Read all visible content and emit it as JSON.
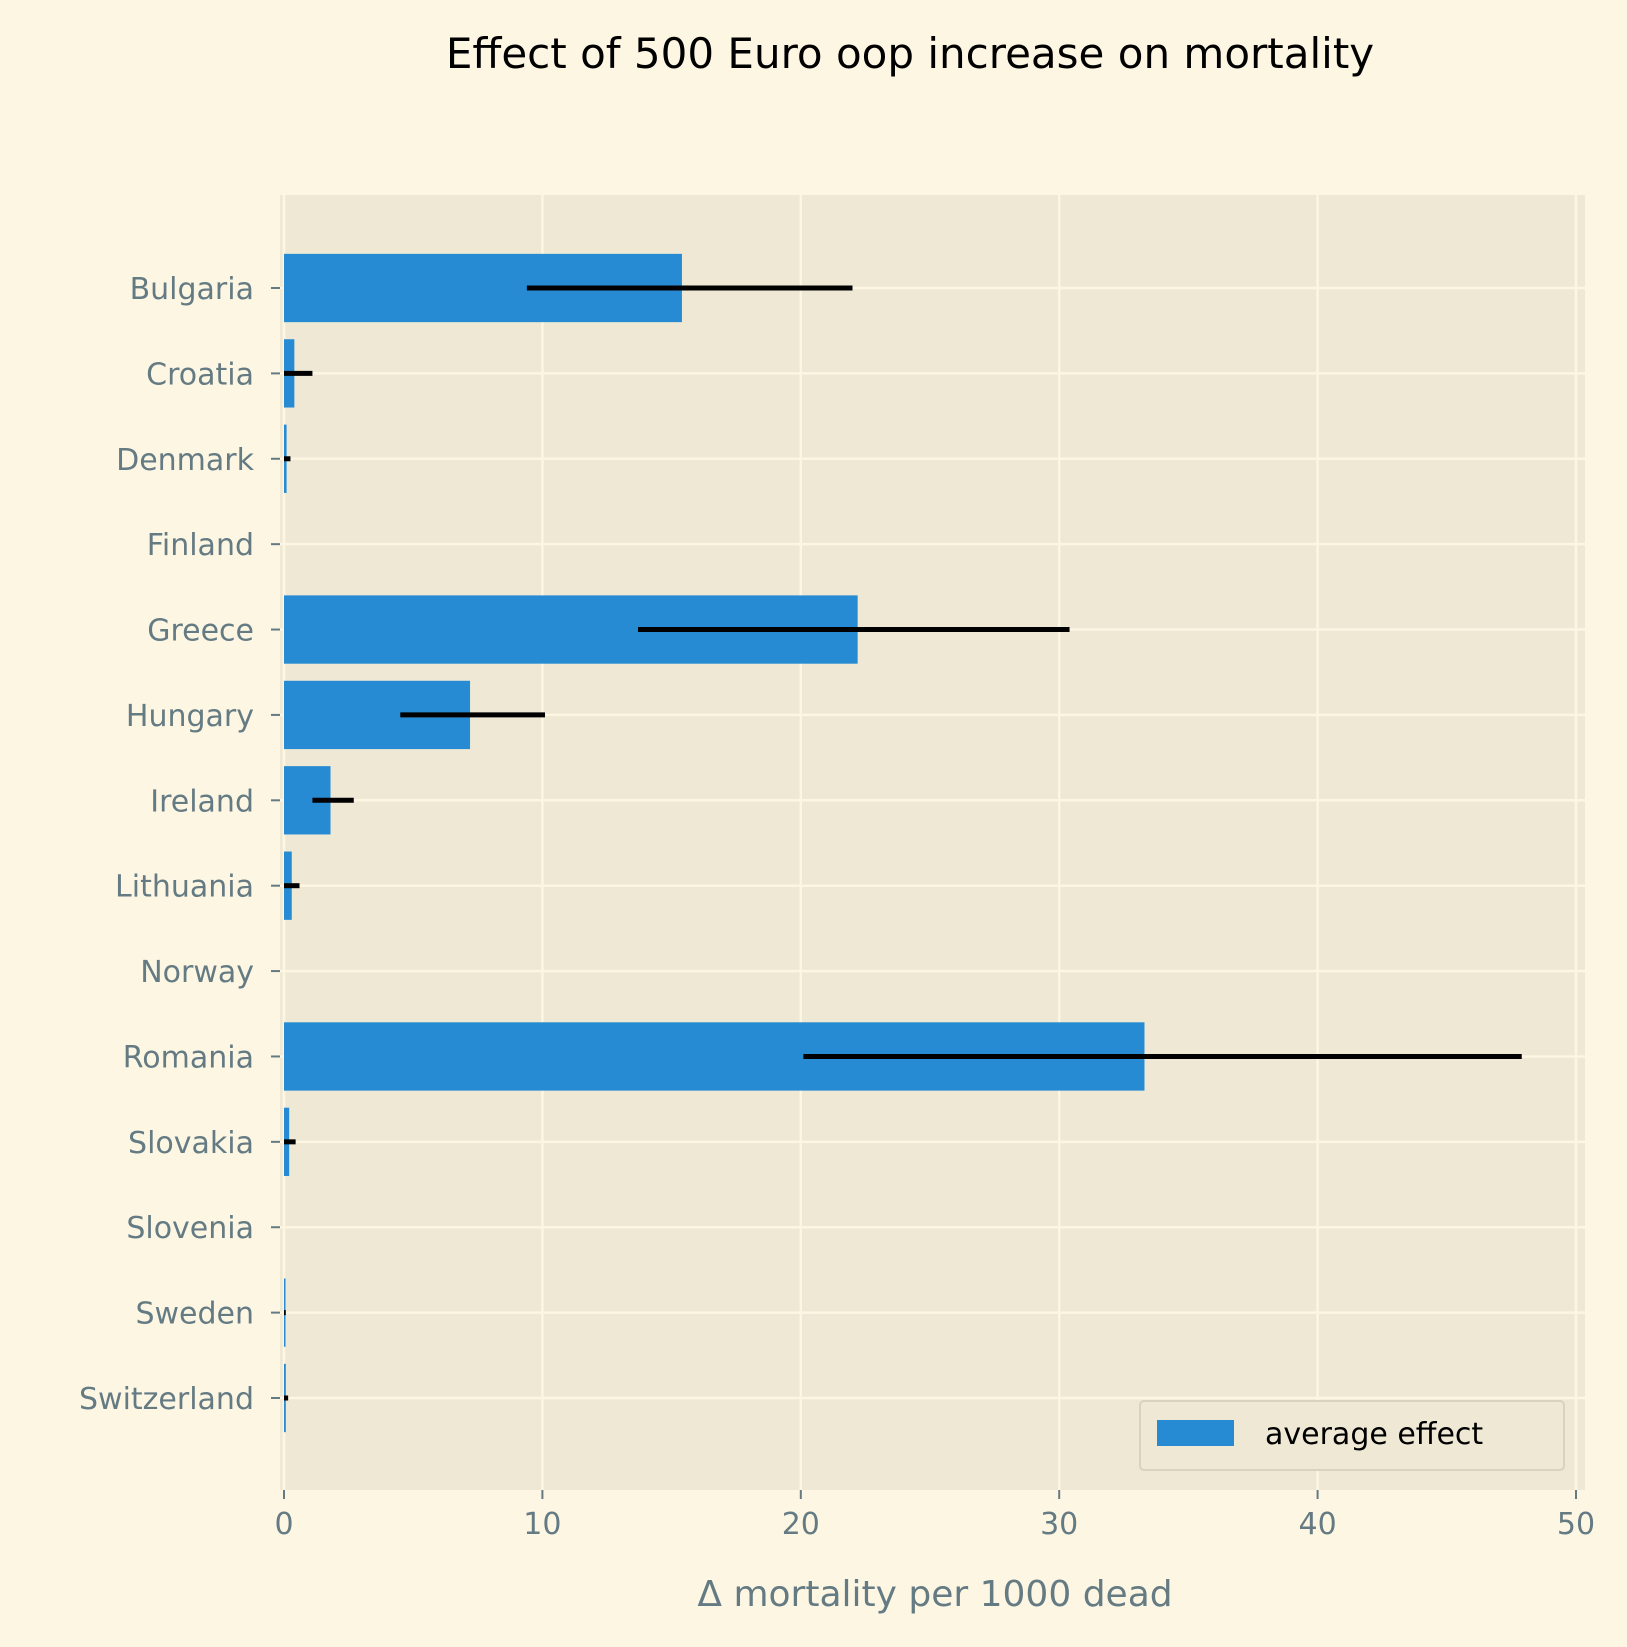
{
  "chart_data": {
    "type": "bar",
    "orientation": "horizontal",
    "title": "Effect of 500 Euro oop increase on mortality",
    "xlabel": "Δ mortality per 1000 dead",
    "ylabel": "",
    "xlim": [
      0,
      50
    ],
    "xticks": [
      "0",
      "10",
      "20",
      "30",
      "40",
      "50"
    ],
    "grid": true,
    "legend_position": "lower-right",
    "categories": [
      "Bulgaria",
      "Croatia",
      "Denmark",
      "Finland",
      "Greece",
      "Hungary",
      "Ireland",
      "Lithuania",
      "Norway",
      "Romania",
      "Slovakia",
      "Slovenia",
      "Sweden",
      "Switzerland"
    ],
    "series": [
      {
        "name": "average effect",
        "values": [
          15.4,
          0.4,
          0.1,
          0.0,
          22.2,
          7.2,
          1.8,
          0.3,
          0.0,
          33.3,
          0.2,
          0.0,
          0.03,
          0.07
        ],
        "error_low": [
          9.4,
          0.0,
          0.0,
          0.0,
          13.7,
          4.5,
          1.1,
          0.0,
          0.0,
          20.1,
          0.0,
          0.0,
          0.0,
          0.0
        ],
        "error_high": [
          22.0,
          1.1,
          0.25,
          0.0,
          30.4,
          10.1,
          2.7,
          0.6,
          0.0,
          47.9,
          0.45,
          0.0,
          0.07,
          0.16
        ]
      }
    ],
    "colors": {
      "bar": "#268bd2",
      "error": "#000000",
      "plot_bg": "#eee8d5",
      "page_bg": "#fdf6e3",
      "grid": "#fdf6e3",
      "tick": "#657b83"
    }
  }
}
